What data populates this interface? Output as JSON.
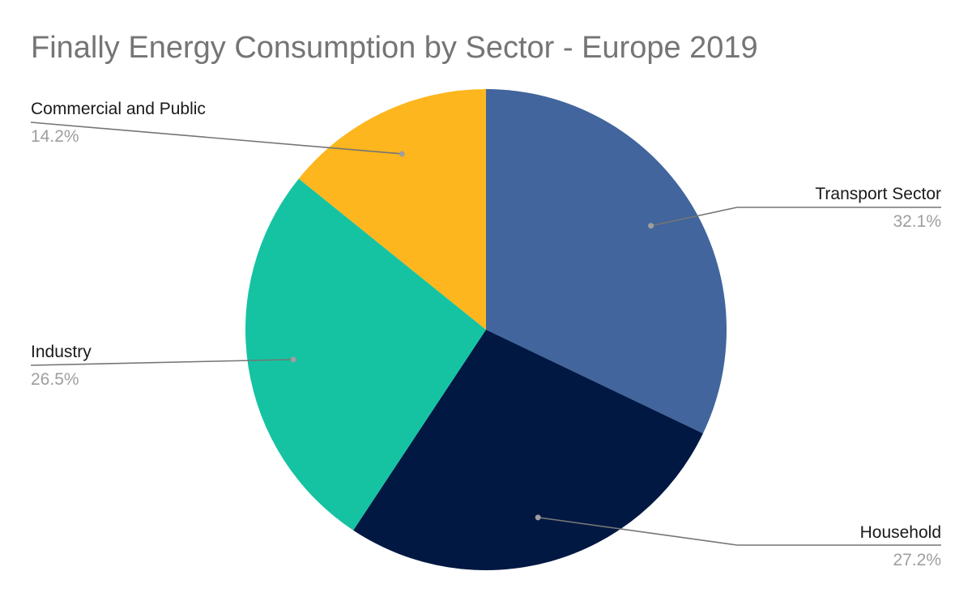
{
  "chart_data": {
    "type": "pie",
    "title": "Finally Energy Consumption by Sector - Europe 2019",
    "slices": [
      {
        "label": "Transport Sector",
        "value": 32.1,
        "value_label": "32.1%",
        "color": "#41659c"
      },
      {
        "label": "Household",
        "value": 27.2,
        "value_label": "27.2%",
        "color": "#001842"
      },
      {
        "label": "Industry",
        "value": 26.5,
        "value_label": "26.5%",
        "color": "#15c3a2"
      },
      {
        "label": "Commercial and Public",
        "value": 14.2,
        "value_label": "14.2%",
        "color": "#fdb61d"
      }
    ],
    "start_angle": "12 o'clock",
    "direction": "clockwise"
  }
}
